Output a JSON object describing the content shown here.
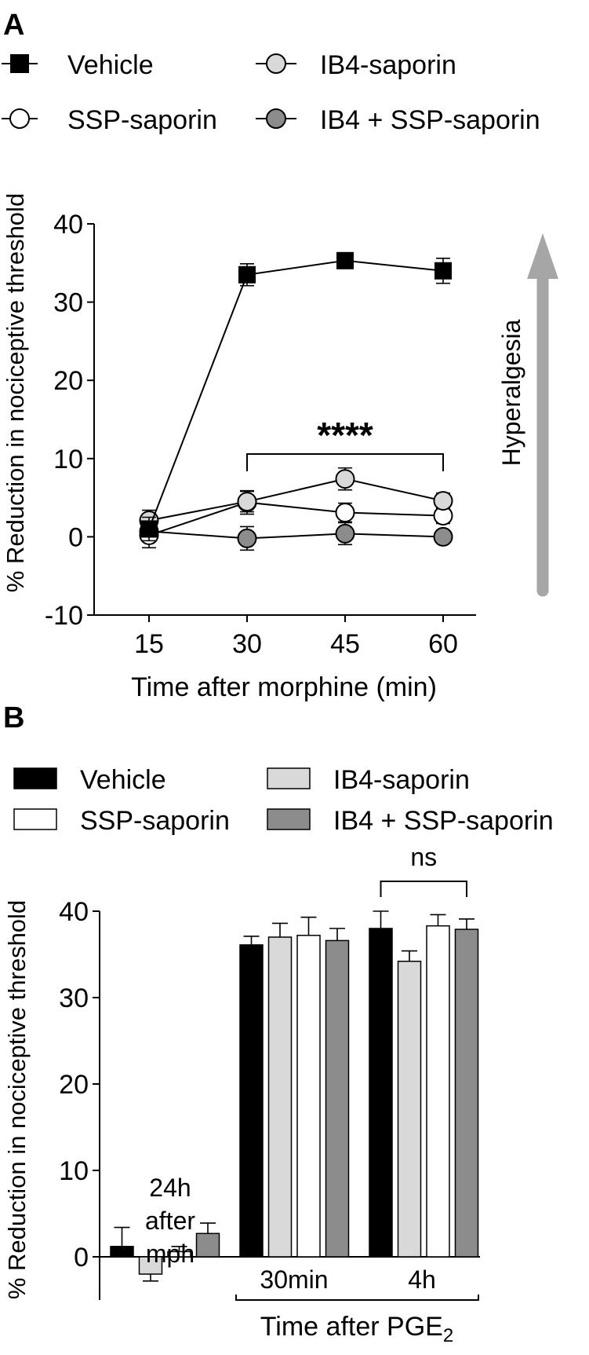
{
  "chart_data": [
    {
      "panel_label": "A",
      "type": "line",
      "xlabel": "Time after morphine (min)",
      "ylabel": "% Reduction in nociceptive threshold",
      "x": [
        15,
        30,
        45,
        60
      ],
      "xticks": [
        "15",
        "30",
        "45",
        "60"
      ],
      "ylim": [
        -10,
        40
      ],
      "yticks": [
        "-10",
        "0",
        "10",
        "20",
        "30",
        "40"
      ],
      "grid": false,
      "legend_position": "top",
      "series": [
        {
          "name": "Vehicle",
          "marker": "square",
          "fill": "#000000",
          "values": [
            1.0,
            33.5,
            35.3,
            34.0
          ],
          "errors": [
            1.5,
            1.4,
            0.8,
            1.6
          ]
        },
        {
          "name": "SSP-saporin",
          "marker": "circle",
          "fill": "#ffffff",
          "values": [
            0.2,
            4.4,
            3.1,
            2.7
          ],
          "errors": [
            1.6,
            1.5,
            1.2,
            1.0
          ]
        },
        {
          "name": "IB4-saporin",
          "marker": "circle",
          "fill": "#d9d9d9",
          "values": [
            2.1,
            4.5,
            7.4,
            4.6
          ],
          "errors": [
            1.3,
            1.3,
            1.4,
            1.0
          ]
        },
        {
          "name": "IB4 + SSP-saporin",
          "marker": "circle",
          "fill": "#8c8c8c",
          "values": [
            0.7,
            -0.2,
            0.4,
            0.0
          ],
          "errors": [
            1.2,
            1.5,
            1.4,
            0.8
          ]
        }
      ],
      "annotation": {
        "text": "****",
        "from_x": 30,
        "to_x": 60
      },
      "side_arrow_label": "Hyperalgesia"
    },
    {
      "panel_label": "B",
      "type": "bar",
      "ylabel": "% Reduction in nociceptive threshold",
      "ylim": [
        -5,
        40
      ],
      "yticks": [
        "0",
        "10",
        "20",
        "30",
        "40"
      ],
      "grid": false,
      "legend_position": "top",
      "groups": [
        {
          "label_lines": [
            "24h",
            "after",
            "mph"
          ]
        },
        {
          "label": "30min"
        },
        {
          "label": "4h"
        }
      ],
      "xlabel": "Time after PGE",
      "xlabel_sub": "2",
      "series": [
        {
          "name": "Vehicle",
          "fill": "#000000",
          "values": [
            1.2,
            36.1,
            38.0
          ],
          "errors": [
            2.2,
            1.0,
            2.0
          ]
        },
        {
          "name": "IB4-saporin",
          "fill": "#d9d9d9",
          "values": [
            -2.0,
            37.0,
            34.2
          ],
          "errors": [
            0.8,
            1.6,
            1.2
          ]
        },
        {
          "name": "SSP-saporin",
          "fill": "#ffffff",
          "values": [
            0.6,
            37.2,
            38.3
          ],
          "errors": [
            0.6,
            2.1,
            1.3
          ]
        },
        {
          "name": "IB4 + SSP-saporin",
          "fill": "#8c8c8c",
          "values": [
            2.7,
            36.6,
            37.9
          ],
          "errors": [
            1.2,
            1.4,
            1.2
          ]
        }
      ],
      "annotation": {
        "text": "ns",
        "group": 2
      }
    }
  ]
}
